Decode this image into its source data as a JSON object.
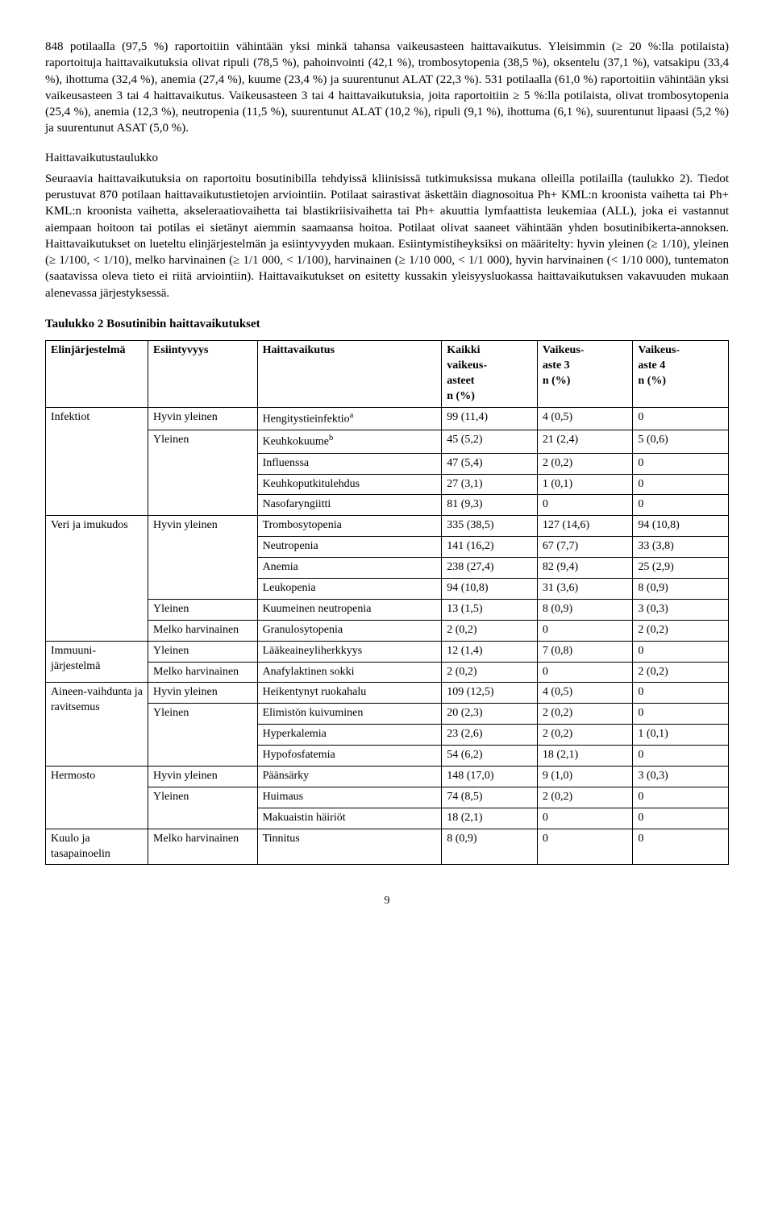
{
  "paragraphs": {
    "p1": "848 potilaalla (97,5 %) raportoitiin vähintään yksi minkä tahansa vaikeusasteen haittavaikutus. Yleisimmin (≥ 20 %:lla potilaista) raportoituja haittavaikutuksia olivat ripuli (78,5 %), pahoinvointi (42,1 %), trombosytopenia (38,5 %), oksentelu (37,1 %), vatsakipu (33,4 %), ihottuma (32,4 %), anemia (27,4 %), kuume (23,4 %) ja suurentunut ALAT (22,3 %). 531 potilaalla (61,0 %) raportoitiin vähintään yksi vaikeusasteen 3 tai 4 haittavaikutus. Vaikeusasteen 3 tai 4 haittavaikutuksia, joita raportoitiin ≥ 5 %:lla potilaista, olivat trombosytopenia (25,4 %), anemia (12,3 %), neutropenia (11,5 %), suurentunut ALAT (10,2 %), ripuli (9,1 %), ihottuma (6,1 %), suurentunut lipaasi (5,2 %) ja suurentunut ASAT (5,0 %).",
    "p2_title": "Haittavaikutustaulukko",
    "p2": "Seuraavia haittavaikutuksia on raportoitu bosutinibilla tehdyissä kliinisissä tutkimuksissa mukana olleilla potilailla (taulukko 2). Tiedot perustuvat 870 potilaan haittavaikutustietojen arviointiin. Potilaat sairastivat äskettäin diagnosoitua Ph+ KML:n kroonista vaihetta tai Ph+ KML:n kroonista vaihetta, akseleraatiovaihetta tai blastikriisivaihetta tai Ph+ akuuttia lymfaattista leukemiaa (ALL), joka ei vastannut aiempaan hoitoon tai potilas ei sietänyt aiemmin saamaansa hoitoa. Potilaat olivat saaneet vähintään yhden bosutinibikerta-annoksen. Haittavaikutukset on lueteltu elinjärjestelmän ja esiintyvyyden mukaan. Esiintymistiheyksiksi on määritelty: hyvin yleinen (≥ 1/10), yleinen (≥ 1/100, < 1/10), melko harvinainen (≥ 1/1 000, < 1/100), harvinainen (≥ 1/10 000, < 1/1 000), hyvin harvinainen (< 1/10 000), tuntematon (saatavissa oleva tieto ei riitä arviointiin). Haittavaikutukset on esitetty kussakin yleisyysluokassa haittavaikutuksen vakavuuden mukaan alenevassa järjestyksessä.",
    "table_title": "Taulukko 2 Bosutinibin haittavaikutukset"
  },
  "table": {
    "headers": {
      "h1": "Elinjärjestelmä",
      "h2": "Esiintyvyys",
      "h3": "Haittavaikutus",
      "h4a": "Kaikki",
      "h4b": "vaikeus-",
      "h4c": "asteet",
      "h4d": "n (%)",
      "h5a": "Vaikeus-",
      "h5b": "aste 3",
      "h5c": "n (%)",
      "h6a": "Vaikeus-",
      "h6b": "aste 4",
      "h6c": "n (%)"
    },
    "groups": [
      {
        "system": "Infektiot",
        "freqs": [
          {
            "freq": "Hyvin yleinen",
            "rows": [
              {
                "ae": "Hengitystieinfektio",
                "sup": "a",
                "all": "99 (11,4)",
                "g3": "4 (0,5)",
                "g4": "0"
              }
            ]
          },
          {
            "freq": "Yleinen",
            "rows": [
              {
                "ae": "Keuhkokuume",
                "sup": "b",
                "all": "45 (5,2)",
                "g3": "21 (2,4)",
                "g4": "5 (0,6)"
              },
              {
                "ae": "Influenssa",
                "all": "47 (5,4)",
                "g3": "2 (0,2)",
                "g4": "0"
              },
              {
                "ae": "Keuhkoputkitulehdus",
                "all": "27 (3,1)",
                "g3": "1 (0,1)",
                "g4": "0"
              },
              {
                "ae": "Nasofaryngiitti",
                "all": "81 (9,3)",
                "g3": "0",
                "g4": "0"
              }
            ]
          }
        ]
      },
      {
        "system": "Veri ja imukudos",
        "freqs": [
          {
            "freq": "Hyvin yleinen",
            "rows": [
              {
                "ae": "Trombosytopenia",
                "all": "335 (38,5)",
                "g3": "127 (14,6)",
                "g4": "94 (10,8)"
              },
              {
                "ae": "Neutropenia",
                "all": "141 (16,2)",
                "g3": "67 (7,7)",
                "g4": "33 (3,8)"
              },
              {
                "ae": "Anemia",
                "all": "238 (27,4)",
                "g3": "82 (9,4)",
                "g4": "25 (2,9)"
              },
              {
                "ae": "Leukopenia",
                "all": "94 (10,8)",
                "g3": "31 (3,6)",
                "g4": "8 (0,9)"
              }
            ]
          },
          {
            "freq": "Yleinen",
            "rows": [
              {
                "ae": "Kuumeinen neutropenia",
                "all": "13 (1,5)",
                "g3": "8 (0,9)",
                "g4": "3 (0,3)"
              }
            ]
          },
          {
            "freq": "Melko harvinainen",
            "rows": [
              {
                "ae": "Granulosytopenia",
                "all": "2 (0,2)",
                "g3": "0",
                "g4": "2 (0,2)"
              }
            ]
          }
        ]
      },
      {
        "system": "Immuuni-järjestelmä",
        "freqs": [
          {
            "freq": "Yleinen",
            "rows": [
              {
                "ae": "Lääkeaineyliherkkyys",
                "all": "12 (1,4)",
                "g3": "7 (0,8)",
                "g4": "0"
              }
            ]
          },
          {
            "freq": "Melko harvinainen",
            "rows": [
              {
                "ae": "Anafylaktinen sokki",
                "all": "2 (0,2)",
                "g3": "0",
                "g4": "2 (0,2)"
              }
            ]
          }
        ]
      },
      {
        "system": "Aineen-vaihdunta ja ravitsemus",
        "freqs": [
          {
            "freq": "Hyvin yleinen",
            "rows": [
              {
                "ae": "Heikentynyt ruokahalu",
                "all": "109 (12,5)",
                "g3": "4 (0,5)",
                "g4": "0"
              }
            ]
          },
          {
            "freq": "Yleinen",
            "rows": [
              {
                "ae": "Elimistön kuivuminen",
                "all": "20 (2,3)",
                "g3": "2 (0,2)",
                "g4": "0"
              },
              {
                "ae": "Hyperkalemia",
                "all": "23 (2,6)",
                "g3": "2 (0,2)",
                "g4": "1 (0,1)"
              },
              {
                "ae": "Hypofosfatemia",
                "all": "54 (6,2)",
                "g3": "18 (2,1)",
                "g4": "0"
              }
            ]
          }
        ]
      },
      {
        "system": "Hermosto",
        "freqs": [
          {
            "freq": "Hyvin yleinen",
            "rows": [
              {
                "ae": "Päänsärky",
                "all": "148 (17,0)",
                "g3": "9 (1,0)",
                "g4": "3 (0,3)"
              }
            ]
          },
          {
            "freq": "Yleinen",
            "rows": [
              {
                "ae": "Huimaus",
                "all": "74 (8,5)",
                "g3": "2 (0,2)",
                "g4": "0"
              },
              {
                "ae": "Makuaistin häiriöt",
                "all": "18 (2,1)",
                "g3": "0",
                "g4": "0"
              }
            ]
          }
        ]
      },
      {
        "system": "Kuulo ja tasapainoelin",
        "freqs": [
          {
            "freq": "Melko harvinainen",
            "rows": [
              {
                "ae": "Tinnitus",
                "all": "8 (0,9)",
                "g3": "0",
                "g4": "0"
              }
            ]
          }
        ]
      }
    ]
  },
  "page_number": "9"
}
